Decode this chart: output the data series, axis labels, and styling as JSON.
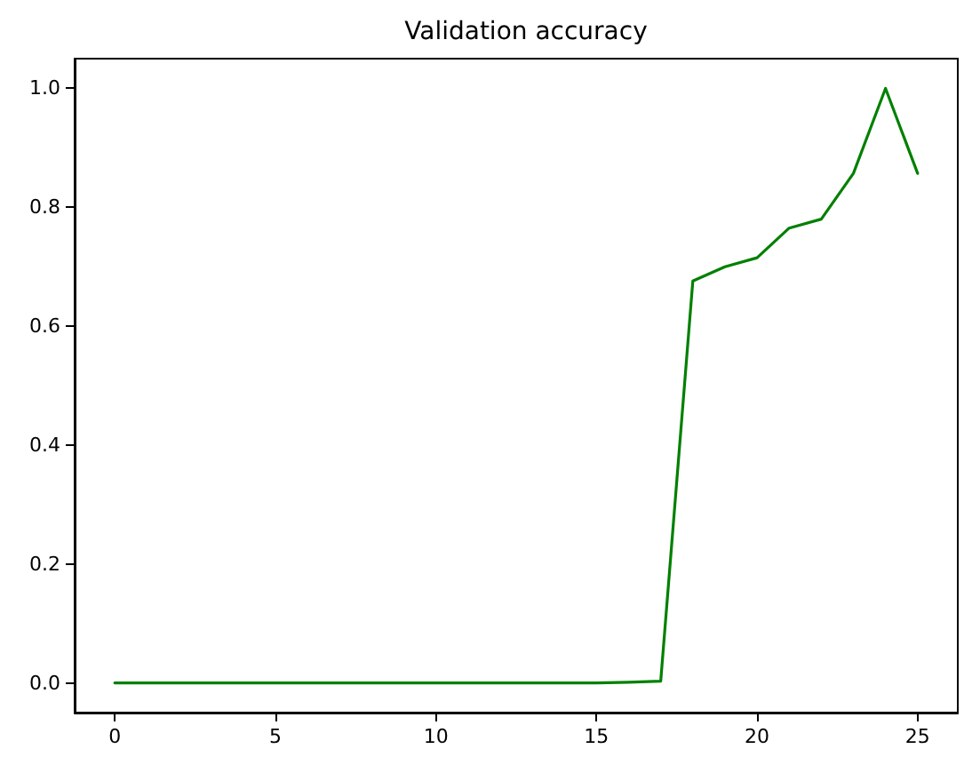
{
  "chart_data": {
    "type": "line",
    "title": "Validation accuracy",
    "x": [
      0,
      1,
      2,
      3,
      4,
      5,
      6,
      7,
      8,
      9,
      10,
      11,
      12,
      13,
      14,
      15,
      16,
      17,
      18,
      19,
      20,
      21,
      22,
      23,
      24,
      25
    ],
    "series": [
      {
        "color": "#008000",
        "values": [
          0,
          0,
          0,
          0,
          0,
          0,
          0,
          0,
          0,
          0,
          0,
          0,
          0,
          0,
          0,
          0,
          0.001,
          0.003,
          0.676,
          0.7,
          0.715,
          0.765,
          0.78,
          0.857,
          1.0,
          0.857
        ]
      }
    ],
    "xlim": [
      -1.25,
      26.25
    ],
    "xticks": [
      0,
      5,
      10,
      15,
      20,
      25
    ],
    "ylim": [
      -0.05,
      1.05
    ],
    "yticks": [
      {
        "value": 0,
        "label": "0.0"
      },
      {
        "value": 0.2,
        "label": "0.2"
      },
      {
        "value": 0.4,
        "label": "0.4"
      },
      {
        "value": 0.6,
        "label": "0.6"
      },
      {
        "value": 0.8,
        "label": "0.8"
      },
      {
        "value": 1,
        "label": "1.0"
      }
    ],
    "grid": false,
    "marker": "none",
    "line_style": "solid"
  }
}
